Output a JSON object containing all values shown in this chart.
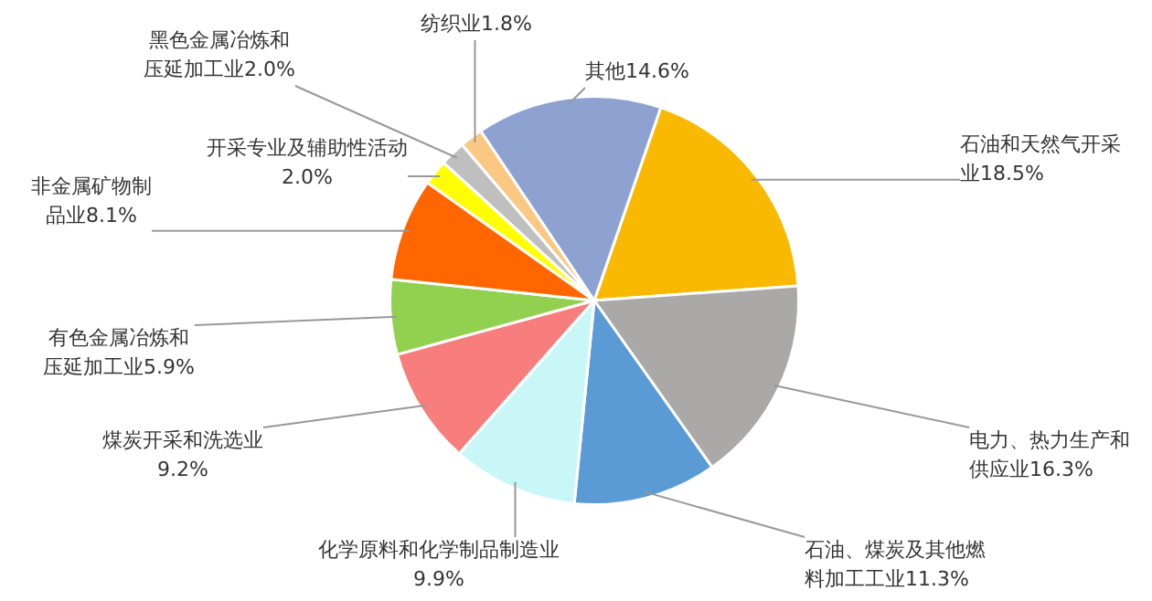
{
  "chart_data": {
    "type": "pie",
    "categories": [
      "石油和天然气开采业",
      "电力、热力生产和供应业",
      "石油、煤炭及其他燃料加工工业",
      "化学原料和化学制品制造业",
      "煤炭开采和洗选业",
      "有色金属冶炼和压延加工业",
      "非金属矿物制品业",
      "开采专业及辅助性活动",
      "黑色金属冶炼和压延加工业",
      "纺织业",
      "其他"
    ],
    "values": [
      18.5,
      16.3,
      11.3,
      9.9,
      9.2,
      5.9,
      8.1,
      2.0,
      2.0,
      1.8,
      14.6
    ],
    "value_labels": [
      "18.5%",
      "16.3%",
      "11.3%",
      "9.9%",
      "9.2%",
      "5.9%",
      "8.1%",
      "2.0%",
      "2.0%",
      "1.8%",
      "14.6%"
    ],
    "colors": [
      "#f9b900",
      "#aba8a8",
      "#5b9bd5",
      "#c9f7f7",
      "#f87d7d",
      "#92d050",
      "#ff6600",
      "#ffff00",
      "#bfbfbf",
      "#fac880",
      "#8ea2d2"
    ],
    "legend": false
  }
}
